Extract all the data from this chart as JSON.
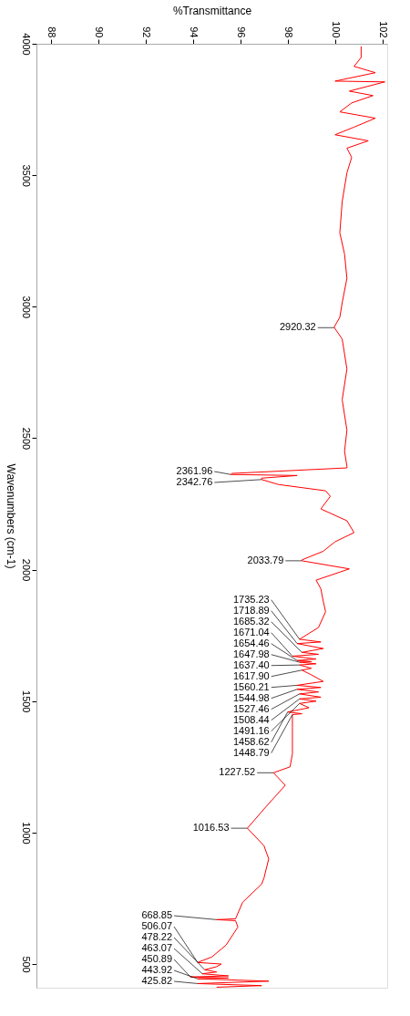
{
  "chart_data": {
    "type": "line",
    "orientation": "horizontal",
    "xlabel": "%Transmittance",
    "ylabel": "Wavenumbers (cm-1)",
    "xlim": [
      87.4,
      102.2
    ],
    "ylim": [
      410,
      4000
    ],
    "xticks": [
      88,
      90,
      92,
      94,
      96,
      98,
      100,
      102
    ],
    "yticks": [
      500,
      1000,
      1500,
      2000,
      2500,
      3000,
      3500,
      4000
    ],
    "grid": false,
    "legend": false,
    "x": [
      3990,
      3948,
      3914,
      3890,
      3858,
      3855,
      3820,
      3803,
      3775,
      3741,
      3717,
      3683,
      3654,
      3631,
      3603,
      3568,
      3509,
      3400,
      3281,
      3200,
      3108,
      3015,
      2960,
      2922,
      2877,
      2763,
      2646,
      2531,
      2450,
      2393,
      2387,
      2366,
      2361.96,
      2358,
      2348,
      2342.76,
      2324,
      2300,
      2279,
      2231,
      2186,
      2141,
      2106,
      2070,
      2037,
      2033.79,
      2003,
      1960,
      1927,
      1880,
      1840,
      1780,
      1735.23,
      1725,
      1718.89,
      1700,
      1685.32,
      1678,
      1671.04,
      1660,
      1654.46,
      1650,
      1647.98,
      1642,
      1637.4,
      1625,
      1617.9,
      1600,
      1575,
      1560.21,
      1552,
      1544.98,
      1535,
      1527.46,
      1515,
      1508.44,
      1500,
      1491.16,
      1475,
      1458.62,
      1452,
      1448.79,
      1400,
      1300,
      1250,
      1227.52,
      1180,
      1100,
      1016.53,
      950,
      900,
      827,
      804,
      735,
      672,
      668.85,
      665,
      641,
      572,
      527,
      506.07,
      500,
      490,
      478.22,
      470,
      463.07,
      455,
      450.89,
      447,
      443.92,
      435,
      425.82,
      418,
      412
    ],
    "series": [
      {
        "color": "#ff0000",
        "values": [
          101.1,
          101.1,
          100.8,
          101.7,
          100.0,
          102.1,
          100.6,
          101.6,
          100.7,
          100.2,
          101.7,
          100.8,
          100.0,
          101.4,
          100.5,
          100.7,
          100.5,
          100.3,
          100.2,
          100.4,
          100.5,
          100.3,
          100.2,
          99.96,
          100.3,
          100.5,
          100.3,
          100.5,
          100.4,
          100.5,
          100.5,
          95.65,
          95.6,
          98.4,
          96.9,
          96.9,
          97.6,
          99.6,
          99.8,
          99.4,
          100.5,
          100.8,
          100.0,
          99.5,
          98.6,
          98.6,
          100.6,
          99.2,
          99.4,
          99.5,
          99.6,
          99.3,
          98.5,
          99.4,
          98.4,
          99.5,
          98.6,
          99.3,
          98.2,
          99.2,
          98.4,
          99.0,
          98.5,
          99.2,
          98.5,
          99.0,
          98.6,
          99.0,
          99.5,
          98.4,
          99.4,
          98.4,
          99.3,
          98.5,
          99.4,
          98.5,
          99.2,
          98.5,
          98.9,
          98.0,
          98.6,
          98.2,
          98.2,
          98.2,
          98.1,
          97.4,
          97.9,
          97.1,
          96.3,
          97.0,
          97.2,
          97.0,
          96.9,
          96.1,
          95.8,
          95.0,
          95.8,
          95.9,
          95.4,
          94.8,
          94.2,
          95.2,
          95.0,
          94.5,
          95.0,
          94.4,
          95.5,
          93.9,
          95.5,
          94.2,
          97.2,
          94.2,
          96.9,
          95.0
        ]
      }
    ],
    "annotations": [
      {
        "text": "2920.32",
        "x": 99.96,
        "y": 2920.32
      },
      {
        "text": "2361.96",
        "x": 95.6,
        "y": 2361.96
      },
      {
        "text": "2342.76",
        "x": 96.9,
        "y": 2342.76
      },
      {
        "text": "2033.79",
        "x": 98.6,
        "y": 2033.79
      },
      {
        "text": "1735.23",
        "x": 98.5,
        "y": 1735.23
      },
      {
        "text": "1718.89",
        "x": 98.4,
        "y": 1718.89
      },
      {
        "text": "1685.32",
        "x": 98.6,
        "y": 1685.32
      },
      {
        "text": "1671.04",
        "x": 98.2,
        "y": 1671.04
      },
      {
        "text": "1654.46",
        "x": 98.4,
        "y": 1654.46
      },
      {
        "text": "1647.98",
        "x": 98.5,
        "y": 1647.98
      },
      {
        "text": "1637.40",
        "x": 98.5,
        "y": 1637.4
      },
      {
        "text": "1617.90",
        "x": 98.6,
        "y": 1617.9
      },
      {
        "text": "1560.21",
        "x": 98.4,
        "y": 1560.21
      },
      {
        "text": "1544.98",
        "x": 98.4,
        "y": 1544.98
      },
      {
        "text": "1527.46",
        "x": 98.5,
        "y": 1527.46
      },
      {
        "text": "1508.44",
        "x": 98.5,
        "y": 1508.44
      },
      {
        "text": "1491.16",
        "x": 98.5,
        "y": 1491.16
      },
      {
        "text": "1458.62",
        "x": 98.0,
        "y": 1458.62
      },
      {
        "text": "1448.79",
        "x": 98.2,
        "y": 1448.79
      },
      {
        "text": "1227.52",
        "x": 97.4,
        "y": 1227.52
      },
      {
        "text": "1016.53",
        "x": 96.3,
        "y": 1016.53
      },
      {
        "text": "668.85",
        "x": 95.0,
        "y": 668.85
      },
      {
        "text": "506.07",
        "x": 94.2,
        "y": 506.07
      },
      {
        "text": "478.22",
        "x": 94.5,
        "y": 478.22
      },
      {
        "text": "463.07",
        "x": 94.4,
        "y": 463.07
      },
      {
        "text": "450.89",
        "x": 93.9,
        "y": 450.89
      },
      {
        "text": "443.92",
        "x": 94.2,
        "y": 443.92
      },
      {
        "text": "425.82",
        "x": 94.2,
        "y": 425.82
      }
    ]
  }
}
